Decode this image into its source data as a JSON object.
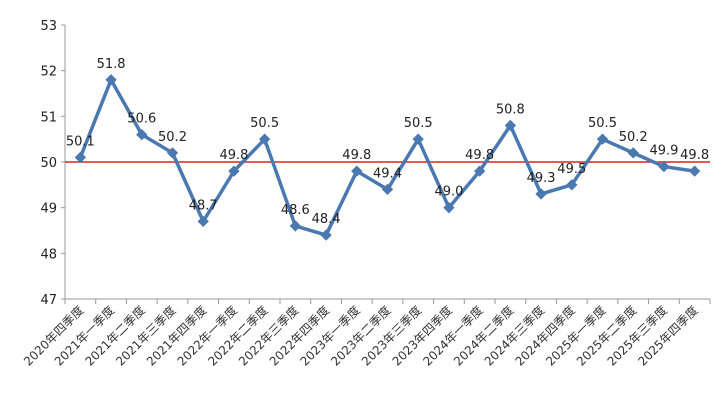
{
  "chart_data": {
    "type": "line",
    "title": "",
    "xlabel": "",
    "ylabel": "",
    "ylim": [
      47,
      53
    ],
    "yticks": [
      47,
      48,
      49,
      50,
      51,
      52,
      53
    ],
    "reference_line": {
      "value": 50,
      "color": "#e02020"
    },
    "grid": false,
    "legend": "none",
    "categories": [
      "2020年四季度",
      "2021年一季度",
      "2021年二季度",
      "2021年三季度",
      "2021年四季度",
      "2022年一季度",
      "2022年二季度",
      "2022年三季度",
      "2022年四季度",
      "2023年一季度",
      "2023年二季度",
      "2023年三季度",
      "2023年四季度",
      "2024年一季度",
      "2024年二季度",
      "2024年三季度",
      "2024年四季度",
      "2025年一季度",
      "2025年二季度",
      "2025年三季度",
      "2025年四季度"
    ],
    "series": [
      {
        "name": "",
        "color": "#4a78b0",
        "values": [
          50.1,
          51.8,
          50.6,
          50.2,
          48.7,
          49.8,
          50.5,
          48.6,
          48.4,
          49.8,
          49.4,
          50.5,
          49.0,
          49.8,
          50.8,
          49.3,
          49.5,
          50.5,
          50.2,
          49.9,
          49.8
        ]
      }
    ]
  }
}
